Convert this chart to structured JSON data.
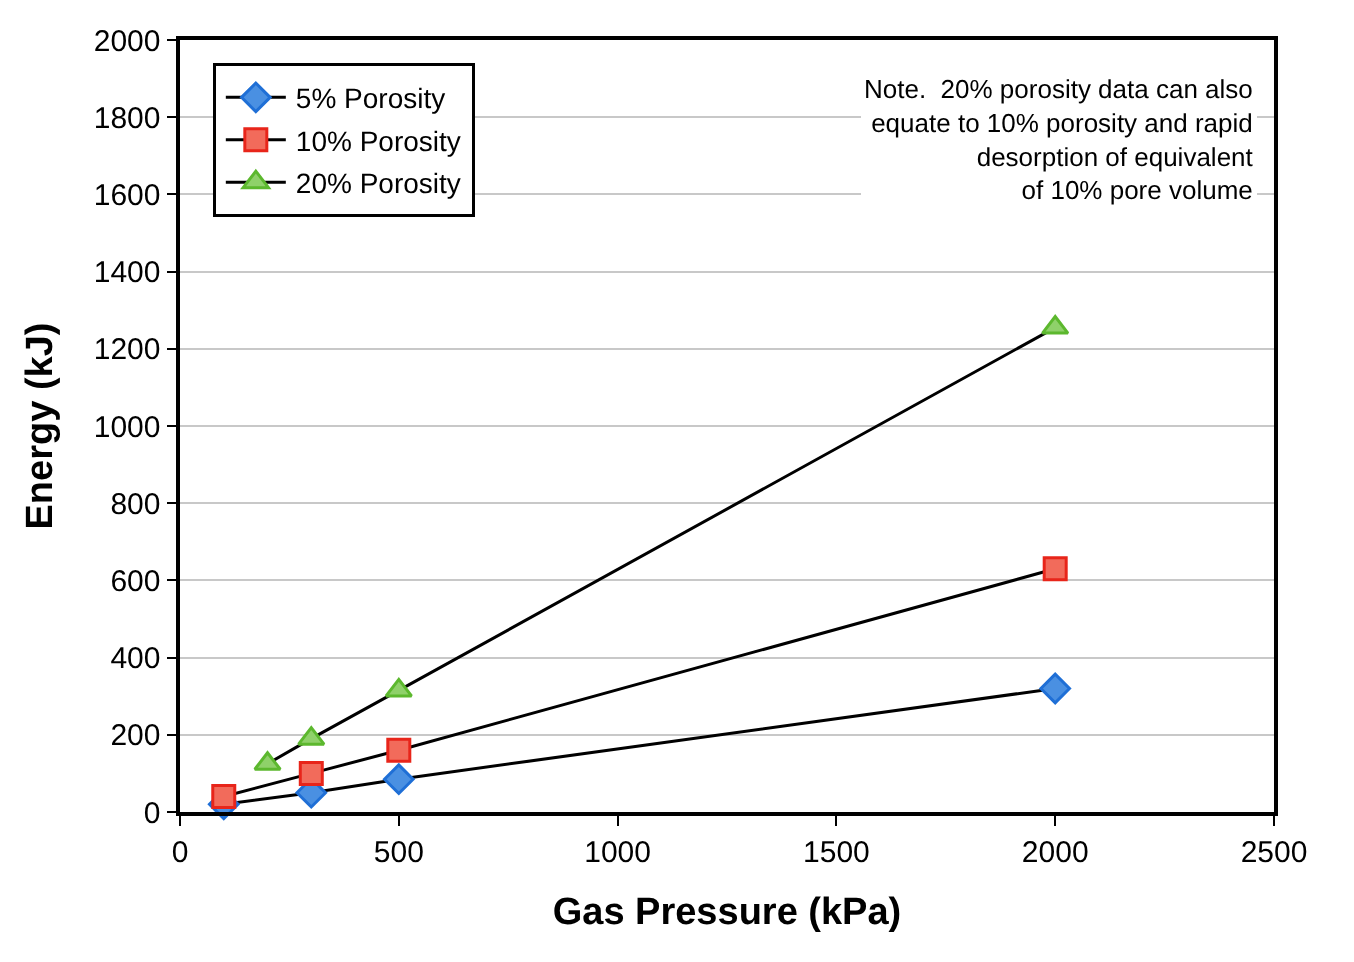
{
  "chart_data": {
    "type": "line",
    "xlabel": "Gas Pressure (kPa)",
    "ylabel": "Energy (kJ)",
    "xlim": [
      0,
      2500
    ],
    "xticks": [
      0,
      500,
      1000,
      1500,
      2000,
      2500
    ],
    "ylim": [
      0,
      2000
    ],
    "yticks": [
      0,
      200,
      400,
      600,
      800,
      1000,
      1200,
      1400,
      1600,
      1800,
      2000
    ],
    "grid": "y",
    "legend": "top left",
    "annotations": [
      "Note.  20% porosity data can also\nequate to 10% porosity and rapid\ndesorption of equivalent\nof 10% pore volume"
    ],
    "series": [
      {
        "name": "5% Porosity",
        "color": "#4a90e2",
        "marker": "diamond",
        "x": [
          100,
          300,
          500,
          2000
        ],
        "values": [
          20,
          50,
          85,
          320
        ]
      },
      {
        "name": "10% Porosity",
        "color": "#f26b5b",
        "marker": "square",
        "x": [
          100,
          300,
          500,
          2000
        ],
        "values": [
          40,
          100,
          160,
          630
        ]
      },
      {
        "name": "20% Porosity",
        "color": "#8fd16a",
        "marker": "triangle",
        "x": [
          200,
          300,
          500,
          2000
        ],
        "values": [
          125,
          190,
          315,
          1255
        ]
      }
    ]
  }
}
